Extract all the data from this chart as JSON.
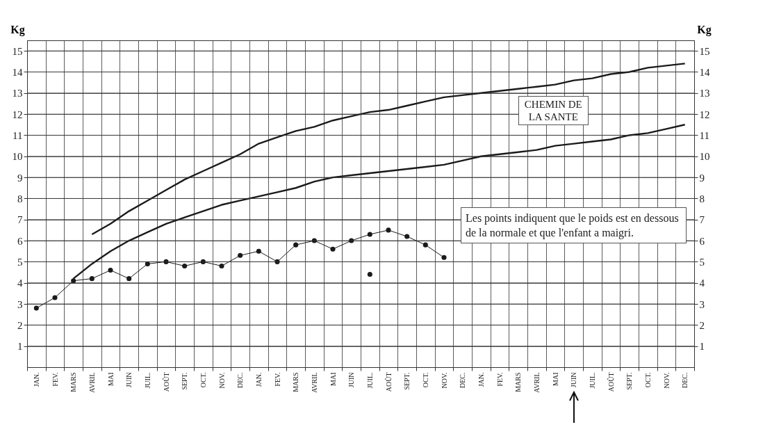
{
  "chart_data": {
    "type": "line",
    "categories": [
      "JAN.",
      "FEV.",
      "MARS",
      "AVRIL",
      "MAI",
      "JUIN",
      "JUIL.",
      "AOÛT",
      "SEPT.",
      "OCT.",
      "NOV.",
      "DEC.",
      "JAN.",
      "FEV.",
      "MARS",
      "AVRIL",
      "MAI",
      "JUIN",
      "JUIL.",
      "AOÛT",
      "SEPT.",
      "OCT.",
      "NOV.",
      "DEC.",
      "JAN.",
      "FEV.",
      "MARS",
      "AVRIL",
      "MAI",
      "JUIN",
      "JUIL.",
      "AOÛT",
      "SEPT.",
      "OCT.",
      "NOV.",
      "DEC."
    ],
    "ylabel": "Kg",
    "y2label": "Kg",
    "ylim": [
      0,
      15.5
    ],
    "yticks": [
      1,
      2,
      3,
      4,
      5,
      6,
      7,
      8,
      9,
      10,
      11,
      12,
      13,
      14,
      15
    ],
    "y2lim": [
      0,
      15.5
    ],
    "y2ticks": [
      1,
      2,
      3,
      4,
      5,
      6,
      7,
      8,
      9,
      10,
      11,
      12,
      13,
      14,
      15
    ],
    "grid": true,
    "marker": "circle",
    "series": [
      {
        "color": "#1a1a1a",
        "marker": "none",
        "values": [
          null,
          null,
          null,
          6.3,
          6.8,
          7.4,
          7.9,
          8.4,
          8.9,
          9.3,
          9.7,
          10.1,
          10.6,
          10.9,
          11.2,
          11.4,
          11.7,
          11.9,
          12.1,
          12.2,
          12.4,
          12.6,
          12.8,
          12.9,
          13.0,
          13.1,
          13.2,
          13.3,
          13.4,
          13.6,
          13.7,
          13.9,
          14.0,
          14.2,
          14.3,
          14.4
        ]
      },
      {
        "color": "#1a1a1a",
        "marker": "none",
        "values": [
          null,
          null,
          4.2,
          4.9,
          5.5,
          6.0,
          6.4,
          6.8,
          7.1,
          7.4,
          7.7,
          7.9,
          8.1,
          8.3,
          8.5,
          8.8,
          9.0,
          9.1,
          9.2,
          9.3,
          9.4,
          9.5,
          9.6,
          9.8,
          10.0,
          10.1,
          10.2,
          10.3,
          10.5,
          10.6,
          10.7,
          10.8,
          11.0,
          11.1,
          11.3,
          11.5
        ]
      },
      {
        "color": "#1a1a1a",
        "values": [
          2.8,
          3.3,
          4.1,
          4.2,
          4.6,
          4.2,
          4.9,
          5.0,
          4.8,
          5.0,
          4.8,
          5.3,
          5.5,
          5.0,
          5.8,
          6.0,
          5.6,
          6.0,
          6.3,
          6.5,
          6.2,
          5.8,
          5.2,
          null,
          null,
          null,
          null,
          null,
          null,
          null,
          null,
          null,
          null,
          null,
          null,
          null
        ]
      },
      {
        "type": "scatter",
        "color": "#1a1a1a",
        "values": [
          null,
          null,
          null,
          null,
          null,
          null,
          null,
          null,
          null,
          null,
          null,
          null,
          null,
          null,
          null,
          null,
          null,
          null,
          4.4,
          null,
          null,
          null,
          null,
          null,
          null,
          null,
          null,
          null,
          null,
          null,
          null,
          null,
          null,
          null,
          null,
          null
        ]
      }
    ],
    "annotations": [
      "CHEMIN DE LA SANTE",
      "Les points indiquent que le poids est en dessous de la normale et que l'enfant a maigri."
    ]
  }
}
